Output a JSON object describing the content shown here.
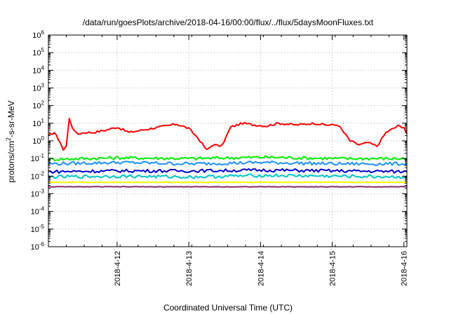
{
  "chart_data": {
    "type": "line",
    "title": "/data/run/goesPlots/archive/2018-04-16/00:00/flux/../flux/5daysMoonFluxes.txt",
    "xlabel": "Coordinated Universal Time (UTC)",
    "ylabel": "protons/cm2-s-sr-MeV",
    "y_scale": "log",
    "ylim_exp": [
      -6,
      6
    ],
    "xlim": [
      "2018-04-11T01:00",
      "2018-04-16T01:00"
    ],
    "x_ticks": [
      "2018-4-12",
      "2018-4-13",
      "2018-4-14",
      "2018-4-15",
      "2018-4-16"
    ],
    "grid": true,
    "legend": "none",
    "series": [
      {
        "color": "#ff0000",
        "x": [
          "2018-04-11T01:00",
          "2018-04-11T03:00",
          "2018-04-11T05:00",
          "2018-04-11T06:00",
          "2018-04-11T07:00",
          "2018-04-11T08:00",
          "2018-04-11T09:00",
          "2018-04-11T10:00",
          "2018-04-11T11:00",
          "2018-04-11T13:00",
          "2018-04-11T16:00",
          "2018-04-11T20:00",
          "2018-04-12T00:00",
          "2018-04-12T04:00",
          "2018-04-12T08:00",
          "2018-04-12T14:00",
          "2018-04-12T20:00",
          "2018-04-13T00:00",
          "2018-04-13T03:00",
          "2018-04-13T06:00",
          "2018-04-13T08:00",
          "2018-04-13T11:00",
          "2018-04-13T14:00",
          "2018-04-13T18:00",
          "2018-04-13T22:00",
          "2018-04-14T02:00",
          "2018-04-14T06:00",
          "2018-04-14T12:00",
          "2018-04-14T18:00",
          "2018-04-14T22:00",
          "2018-04-15T02:00",
          "2018-04-15T06:00",
          "2018-04-15T09:00",
          "2018-04-15T12:00",
          "2018-04-15T15:00",
          "2018-04-15T18:00",
          "2018-04-15T22:00",
          "2018-04-16T00:00",
          "2018-04-16T01:00"
        ],
        "y": [
          2,
          3,
          0.8,
          0.3,
          0.5,
          20,
          6,
          3,
          2.5,
          3,
          3,
          4,
          6,
          3,
          4,
          6,
          9,
          5,
          1.5,
          0.3,
          0.6,
          0.5,
          6,
          10,
          8,
          7,
          10,
          8,
          10,
          8,
          8,
          1,
          0.6,
          0.8,
          0.5,
          3,
          7,
          6,
          2.5
        ]
      },
      {
        "color": "#00ee00",
        "x": [
          "2018-04-11T01:00",
          "2018-04-12T01:00",
          "2018-04-13T01:00",
          "2018-04-14T01:00",
          "2018-04-15T01:00",
          "2018-04-16T01:00"
        ],
        "y": [
          0.09,
          0.11,
          0.1,
          0.12,
          0.1,
          0.1
        ]
      },
      {
        "color": "#1e90ff",
        "x": [
          "2018-04-11T01:00",
          "2018-04-12T01:00",
          "2018-04-13T01:00",
          "2018-04-14T01:00",
          "2018-04-15T01:00",
          "2018-04-16T01:00"
        ],
        "y": [
          0.05,
          0.06,
          0.05,
          0.06,
          0.05,
          0.05
        ]
      },
      {
        "color": "#0000cd",
        "x": [
          "2018-04-11T01:00",
          "2018-04-12T01:00",
          "2018-04-13T01:00",
          "2018-04-14T01:00",
          "2018-04-15T01:00",
          "2018-04-16T01:00"
        ],
        "y": [
          0.018,
          0.02,
          0.02,
          0.022,
          0.02,
          0.018
        ]
      },
      {
        "color": "#00c8c8",
        "x": [
          "2018-04-11T01:00",
          "2018-04-12T01:00",
          "2018-04-13T01:00",
          "2018-04-14T01:00",
          "2018-04-15T01:00",
          "2018-04-16T01:00"
        ],
        "y": [
          0.009,
          0.01,
          0.009,
          0.011,
          0.01,
          0.009
        ]
      },
      {
        "color": "#ffff00",
        "x": [
          "2018-04-11T01:00",
          "2018-04-12T01:00",
          "2018-04-13T01:00",
          "2018-04-14T01:00",
          "2018-04-15T01:00",
          "2018-04-16T01:00"
        ],
        "y": [
          0.0045,
          0.0045,
          0.0045,
          0.0045,
          0.0045,
          0.0045
        ]
      },
      {
        "color": "#8b2a6e",
        "x": [
          "2018-04-11T01:00",
          "2018-04-12T01:00",
          "2018-04-13T01:00",
          "2018-04-14T01:00",
          "2018-04-15T01:00",
          "2018-04-16T01:00"
        ],
        "y": [
          0.0025,
          0.0025,
          0.0025,
          0.0025,
          0.0025,
          0.0025
        ]
      }
    ]
  }
}
